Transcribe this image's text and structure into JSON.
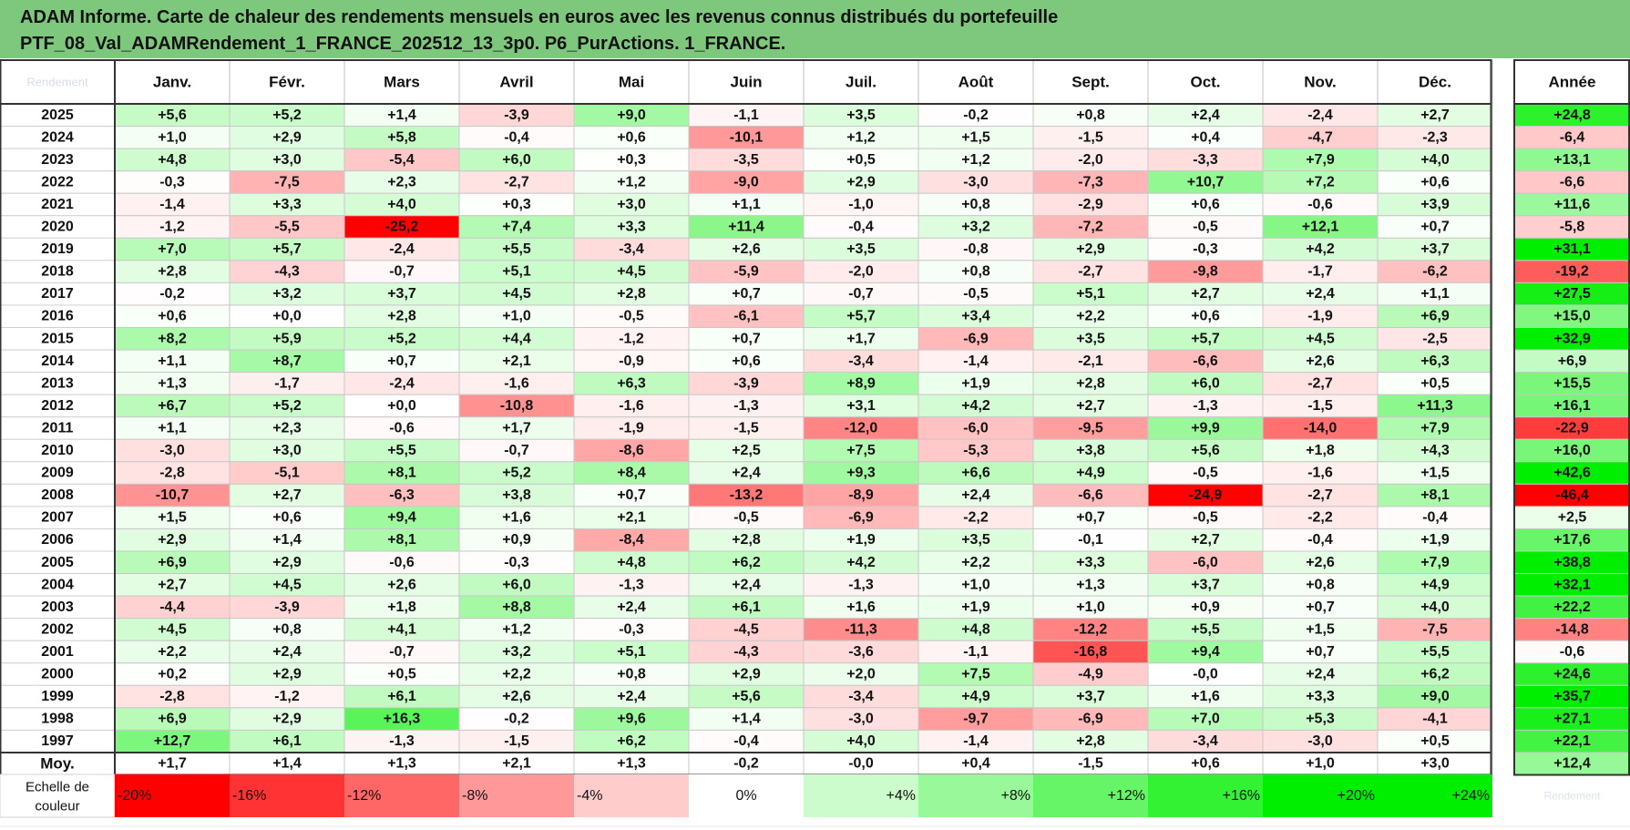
{
  "chart_data": {
    "type": "heatmap",
    "title": "ADAM Informe. Carte de chaleur des rendements mensuels en euros avec les revenus connus distribués du portefeuille",
    "subtitle": "PTF_08_Val_ADAMRendement_1_FRANCE_202512_13_3p0. P6_PurActions. 1_FRANCE.",
    "corner_label": "Rendement",
    "columns": [
      "Janv.",
      "Févr.",
      "Mars",
      "Avril",
      "Mai",
      "Juin",
      "Juil.",
      "Août",
      "Sept.",
      "Oct.",
      "Nov.",
      "Déc."
    ],
    "year_column": "Année",
    "rows": [
      {
        "year": "2025",
        "values": [
          "+5,6",
          "+5,2",
          "+1,4",
          "-3,9",
          "+9,0",
          "-1,1",
          "+3,5",
          "-0,2",
          "+0,8",
          "+2,4",
          "-2,4",
          "+2,7"
        ],
        "annual": "+24,8"
      },
      {
        "year": "2024",
        "values": [
          "+1,0",
          "+2,9",
          "+5,8",
          "-0,4",
          "+0,6",
          "-10,1",
          "+1,2",
          "+1,5",
          "-1,5",
          "+0,4",
          "-4,7",
          "-2,3"
        ],
        "annual": "-6,4"
      },
      {
        "year": "2023",
        "values": [
          "+4,8",
          "+3,0",
          "-5,4",
          "+6,0",
          "+0,3",
          "-3,5",
          "+0,5",
          "+1,2",
          "-2,0",
          "-3,3",
          "+7,9",
          "+4,0"
        ],
        "annual": "+13,1"
      },
      {
        "year": "2022",
        "values": [
          "-0,3",
          "-7,5",
          "+2,3",
          "-2,7",
          "+1,2",
          "-9,0",
          "+2,9",
          "-3,0",
          "-7,3",
          "+10,7",
          "+7,2",
          "+0,6"
        ],
        "annual": "-6,6"
      },
      {
        "year": "2021",
        "values": [
          "-1,4",
          "+3,3",
          "+4,0",
          "+0,3",
          "+3,0",
          "+1,1",
          "-1,0",
          "+0,8",
          "-2,9",
          "+0,6",
          "-0,6",
          "+3,9"
        ],
        "annual": "+11,6"
      },
      {
        "year": "2020",
        "values": [
          "-1,2",
          "-5,5",
          "-25,2",
          "+7,4",
          "+3,3",
          "+11,4",
          "-0,4",
          "+3,2",
          "-7,2",
          "-0,5",
          "+12,1",
          "+0,7"
        ],
        "annual": "-5,8"
      },
      {
        "year": "2019",
        "values": [
          "+7,0",
          "+5,7",
          "-2,4",
          "+5,5",
          "-3,4",
          "+2,6",
          "+3,5",
          "-0,8",
          "+2,9",
          "-0,3",
          "+4,2",
          "+3,7"
        ],
        "annual": "+31,1"
      },
      {
        "year": "2018",
        "values": [
          "+2,8",
          "-4,3",
          "-0,7",
          "+5,1",
          "+4,5",
          "-5,9",
          "-2,0",
          "+0,8",
          "-2,7",
          "-9,8",
          "-1,7",
          "-6,2"
        ],
        "annual": "-19,2"
      },
      {
        "year": "2017",
        "values": [
          "-0,2",
          "+3,2",
          "+3,7",
          "+4,5",
          "+2,8",
          "+0,7",
          "-0,7",
          "-0,5",
          "+5,1",
          "+2,7",
          "+2,4",
          "+1,1"
        ],
        "annual": "+27,5"
      },
      {
        "year": "2016",
        "values": [
          "+0,6",
          "+0,0",
          "+2,8",
          "+1,0",
          "-0,5",
          "-6,1",
          "+5,7",
          "+3,4",
          "+2,2",
          "+0,6",
          "-1,9",
          "+6,9"
        ],
        "annual": "+15,0"
      },
      {
        "year": "2015",
        "values": [
          "+8,2",
          "+5,9",
          "+5,2",
          "+4,4",
          "-1,2",
          "+0,7",
          "+1,7",
          "-6,9",
          "+3,5",
          "+5,7",
          "+4,5",
          "-2,5"
        ],
        "annual": "+32,9"
      },
      {
        "year": "2014",
        "values": [
          "+1,1",
          "+8,7",
          "+0,7",
          "+2,1",
          "-0,9",
          "+0,6",
          "-3,4",
          "-1,4",
          "-2,1",
          "-6,6",
          "+2,6",
          "+6,3"
        ],
        "annual": "+6,9"
      },
      {
        "year": "2013",
        "values": [
          "+1,3",
          "-1,7",
          "-2,4",
          "-1,6",
          "+6,3",
          "-3,9",
          "+8,9",
          "+1,9",
          "+2,8",
          "+6,0",
          "-2,7",
          "+0,5"
        ],
        "annual": "+15,5"
      },
      {
        "year": "2012",
        "values": [
          "+6,7",
          "+5,2",
          "+0,0",
          "-10,8",
          "-1,6",
          "-1,3",
          "+3,1",
          "+4,2",
          "+2,7",
          "-1,3",
          "-1,5",
          "+11,3"
        ],
        "annual": "+16,1"
      },
      {
        "year": "2011",
        "values": [
          "+1,1",
          "+2,3",
          "-0,6",
          "+1,7",
          "-1,9",
          "-1,5",
          "-12,0",
          "-6,0",
          "-9,5",
          "+9,9",
          "-14,0",
          "+7,9"
        ],
        "annual": "-22,9"
      },
      {
        "year": "2010",
        "values": [
          "-3,0",
          "+3,0",
          "+5,5",
          "-0,7",
          "-8,6",
          "+2,5",
          "+7,5",
          "-5,3",
          "+3,8",
          "+5,6",
          "+1,8",
          "+4,3"
        ],
        "annual": "+16,0"
      },
      {
        "year": "2009",
        "values": [
          "-2,8",
          "-5,1",
          "+8,1",
          "+5,2",
          "+8,4",
          "+2,4",
          "+9,3",
          "+6,6",
          "+4,9",
          "-0,5",
          "-1,6",
          "+1,5"
        ],
        "annual": "+42,6"
      },
      {
        "year": "2008",
        "values": [
          "-10,7",
          "+2,7",
          "-6,3",
          "+3,8",
          "+0,7",
          "-13,2",
          "-8,9",
          "+2,4",
          "-6,6",
          "-24,9",
          "-2,7",
          "+8,1"
        ],
        "annual": "-46,4"
      },
      {
        "year": "2007",
        "values": [
          "+1,5",
          "+0,6",
          "+9,4",
          "+1,6",
          "+2,1",
          "-0,5",
          "-6,9",
          "-2,2",
          "+0,7",
          "-0,5",
          "-2,2",
          "-0,4"
        ],
        "annual": "+2,5"
      },
      {
        "year": "2006",
        "values": [
          "+2,9",
          "+1,4",
          "+8,1",
          "+0,9",
          "-8,4",
          "+2,8",
          "+1,9",
          "+3,5",
          "-0,1",
          "+2,7",
          "-0,4",
          "+1,9"
        ],
        "annual": "+17,6"
      },
      {
        "year": "2005",
        "values": [
          "+6,9",
          "+2,9",
          "-0,6",
          "-0,3",
          "+4,8",
          "+6,2",
          "+4,2",
          "+2,2",
          "+3,3",
          "-6,0",
          "+2,6",
          "+7,9"
        ],
        "annual": "+38,8"
      },
      {
        "year": "2004",
        "values": [
          "+2,7",
          "+4,5",
          "+2,6",
          "+6,0",
          "-1,3",
          "+2,4",
          "-1,3",
          "+1,0",
          "+1,3",
          "+3,7",
          "+0,8",
          "+4,9"
        ],
        "annual": "+32,1"
      },
      {
        "year": "2003",
        "values": [
          "-4,4",
          "-3,9",
          "+1,8",
          "+8,8",
          "+2,4",
          "+6,1",
          "+1,6",
          "+1,9",
          "+1,0",
          "+0,9",
          "+0,7",
          "+4,0"
        ],
        "annual": "+22,2"
      },
      {
        "year": "2002",
        "values": [
          "+4,5",
          "+0,8",
          "+4,1",
          "+1,2",
          "-0,3",
          "-4,5",
          "-11,3",
          "+4,8",
          "-12,2",
          "+5,5",
          "+1,5",
          "-7,5"
        ],
        "annual": "-14,8"
      },
      {
        "year": "2001",
        "values": [
          "+2,2",
          "+2,4",
          "-0,7",
          "+3,2",
          "+5,1",
          "-4,3",
          "-3,6",
          "-1,1",
          "-16,8",
          "+9,4",
          "+0,7",
          "+5,5"
        ],
        "annual": "-0,6"
      },
      {
        "year": "2000",
        "values": [
          "+0,2",
          "+2,9",
          "+0,5",
          "+2,2",
          "+0,8",
          "+2,9",
          "+2,0",
          "+7,5",
          "-4,9",
          "-0,0",
          "+2,4",
          "+6,2"
        ],
        "annual": "+24,6"
      },
      {
        "year": "1999",
        "values": [
          "-2,8",
          "-1,2",
          "+6,1",
          "+2,6",
          "+2,4",
          "+5,6",
          "-3,4",
          "+4,9",
          "+3,7",
          "+1,6",
          "+3,3",
          "+9,0"
        ],
        "annual": "+35,7"
      },
      {
        "year": "1998",
        "values": [
          "+6,9",
          "+2,9",
          "+16,3",
          "-0,2",
          "+9,6",
          "+1,4",
          "-3,0",
          "-9,7",
          "-6,9",
          "+7,0",
          "+5,3",
          "-4,1"
        ],
        "annual": "+27,1"
      },
      {
        "year": "1997",
        "values": [
          "+12,7",
          "+6,1",
          "-1,3",
          "-1,5",
          "+6,2",
          "-0,4",
          "+4,0",
          "-1,4",
          "+2,8",
          "-3,4",
          "-3,0",
          "+0,5"
        ],
        "annual": "+22,1"
      }
    ],
    "average": {
      "label": "Moy.",
      "values": [
        "+1,7",
        "+1,4",
        "+1,3",
        "+2,1",
        "+1,3",
        "-0,2",
        "-0,0",
        "+0,4",
        "-1,5",
        "+0,6",
        "+1,0",
        "+3,0"
      ],
      "annual": "+12,4"
    },
    "scale": {
      "label_lines": [
        "Echelle de",
        "couleur"
      ],
      "steps": [
        "-20%",
        "-16%",
        "-12%",
        "-8%",
        "-4%",
        "0%",
        "+4%",
        "+8%",
        "+12%",
        "+16%",
        "+20%",
        "+24%"
      ],
      "extra_label": "Rendement"
    },
    "colors": {
      "negative": "#ff0000",
      "positive": "#00ee00",
      "banner": "#7ec87e"
    }
  }
}
